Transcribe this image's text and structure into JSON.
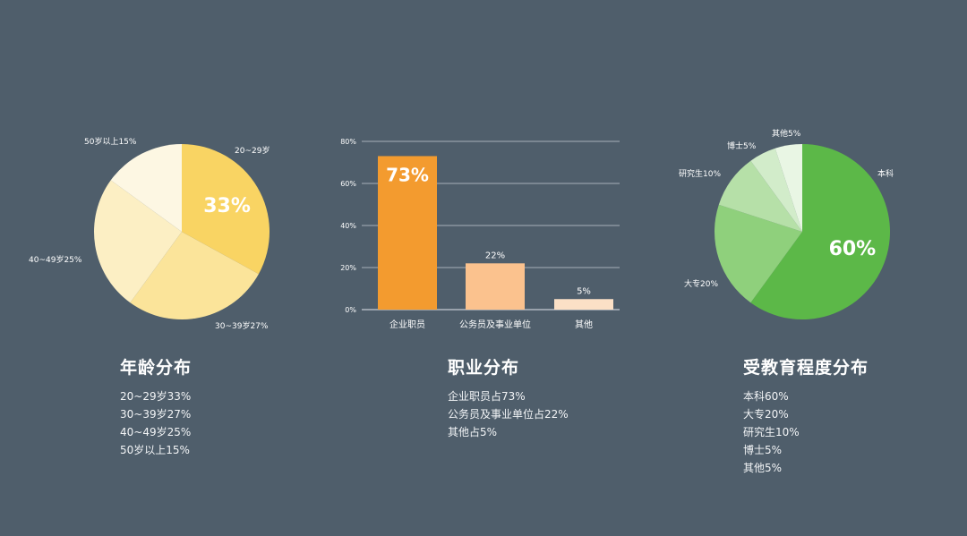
{
  "colors": {
    "background": "#4f5e6b",
    "age": [
      "#f9d463",
      "#fbe49a",
      "#fcefc4",
      "#fdf7e3"
    ],
    "job": [
      "#f39b2f",
      "#fbc28e",
      "#fbe0c6"
    ],
    "edu": [
      "#5cb848",
      "#8fd07c",
      "#b6e0a8",
      "#d2ecca",
      "#e9f6e4"
    ],
    "gridline": "#c5ccd3"
  },
  "chart_data": [
    {
      "type": "pie",
      "title": "年龄分布",
      "slices": [
        {
          "label": "20~29岁",
          "value": 33,
          "value_label": "33%"
        },
        {
          "label": "30~39岁27%",
          "value": 27
        },
        {
          "label": "40~49岁25%",
          "value": 25
        },
        {
          "label": "50岁以上15%",
          "value": 15
        }
      ],
      "legend_lines": [
        "20~29岁33%",
        "30~39岁27%",
        "40~49岁25%",
        "50岁以上15%"
      ]
    },
    {
      "type": "bar",
      "title": "职业分布",
      "categories": [
        "企业职员",
        "公务员及事业单位",
        "其他"
      ],
      "values": [
        73,
        22,
        5
      ],
      "value_labels": [
        "73%",
        "22%",
        "5%"
      ],
      "ylim": [
        0,
        80
      ],
      "yticks": [
        0,
        20,
        40,
        60,
        80
      ],
      "ytick_labels": [
        "0%",
        "20%",
        "40%",
        "60%",
        "80%"
      ],
      "grid": true,
      "legend_lines": [
        "企业职员占73%",
        "公务员及事业单位占22%",
        "其他占5%"
      ]
    },
    {
      "type": "pie",
      "title": "受教育程度分布",
      "slices": [
        {
          "label": "本科",
          "value": 60,
          "value_label": "60%"
        },
        {
          "label": "大专20%",
          "value": 20
        },
        {
          "label": "研究生10%",
          "value": 10
        },
        {
          "label": "博士5%",
          "value": 5
        },
        {
          "label": "其他5%",
          "value": 5
        }
      ],
      "legend_lines": [
        "本科60%",
        "大专20%",
        "研究生10%",
        "博士5%",
        "其他5%"
      ]
    }
  ]
}
